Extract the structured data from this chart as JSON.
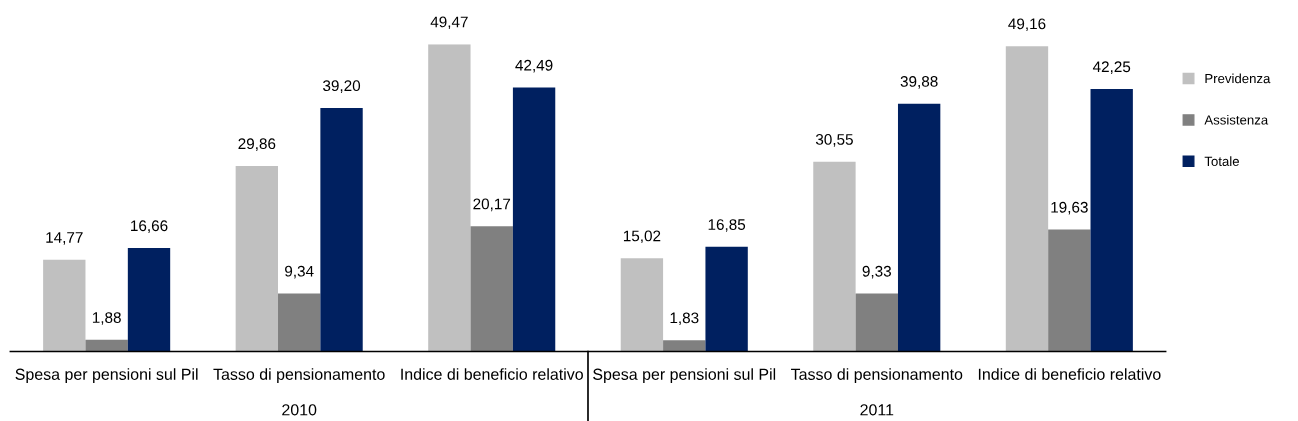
{
  "chart_data": {
    "type": "bar",
    "categories": [
      "Spesa per pensioni sul Pil",
      "Tasso di pensionamento",
      "Indice di beneficio relativo",
      "Spesa per pensioni sul Pil",
      "Tasso di pensionamento",
      "Indice di beneficio relativo"
    ],
    "series": [
      {
        "name": "Previdenza",
        "color": "#c0c0c0",
        "values": [
          14.77,
          29.86,
          49.47,
          15.02,
          30.55,
          49.16
        ],
        "value_labels": [
          "14,77",
          "29,86",
          "49,47",
          "15,02",
          "30,55",
          "49,16"
        ]
      },
      {
        "name": "Assistenza",
        "color": "#808080",
        "values": [
          1.88,
          9.34,
          20.17,
          1.83,
          9.33,
          19.63
        ],
        "value_labels": [
          "1,88",
          "9,34",
          "20,17",
          "1,83",
          "9,33",
          "19,63"
        ]
      },
      {
        "name": "Totale",
        "color": "#002060",
        "values": [
          16.66,
          39.2,
          42.49,
          16.85,
          39.88,
          42.25
        ],
        "value_labels": [
          "16,66",
          "39,20",
          "42,49",
          "16,85",
          "39,88",
          "42,25"
        ]
      }
    ],
    "grid": false,
    "legend": "right",
    "annotations": [
      "2010",
      "2011"
    ]
  }
}
